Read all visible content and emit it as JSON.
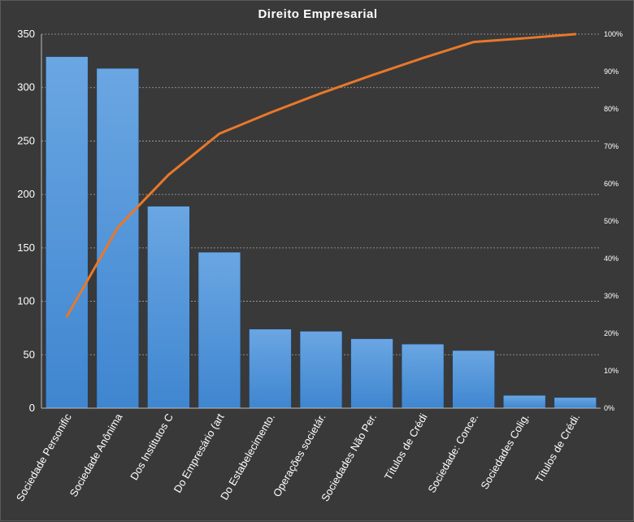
{
  "chart_data": {
    "type": "bar",
    "title": "Direito  Empresarial",
    "categories": [
      "Sociedade Personific",
      "Sociedade Anônima",
      "Dos Institutos C",
      "Do Empresário (art",
      "Do Estabelecimento.",
      "Operações societár.",
      "Sociedades Não Per.",
      "Títulos de Crédi",
      "Sociedade: Conce.",
      "Sociedades Colig.",
      "Títulos de Crédi."
    ],
    "series": [
      {
        "type": "bar",
        "values": [
          329,
          318,
          189,
          146,
          74,
          72,
          65,
          60,
          54,
          12,
          10
        ],
        "color": "#4a90d9"
      },
      {
        "type": "line",
        "axis": "right",
        "values": [
          24.5,
          48.3,
          62.4,
          73.4,
          79.0,
          84.2,
          89.0,
          93.6,
          97.9,
          98.9,
          100
        ],
        "color": "#e8782a"
      }
    ],
    "ylim": [
      0,
      350
    ],
    "yticks": [
      "0",
      "50",
      "100",
      "150",
      "200",
      "250",
      "300",
      "350"
    ],
    "y2lim": [
      0,
      100
    ],
    "y2ticks": [
      "0%",
      "10%",
      "20%",
      "30%",
      "40%",
      "50%",
      "60%",
      "70%",
      "80%",
      "90%",
      "100%"
    ],
    "grid": true,
    "legend": "none",
    "xlabel": "",
    "ylabel": ""
  }
}
